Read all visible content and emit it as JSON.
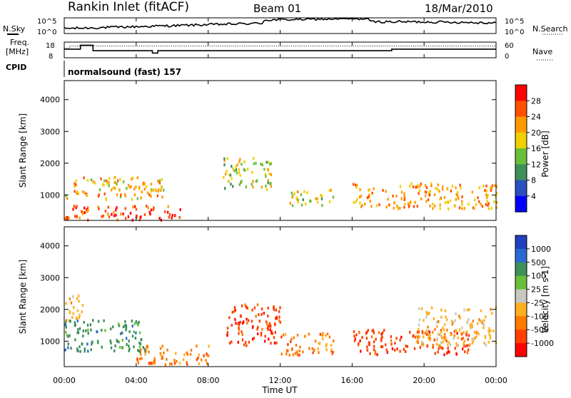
{
  "header": {
    "station": "Rankin Inlet (fitACF)",
    "beam": "Beam 01",
    "date": "18/Mar/2010"
  },
  "top_panels": {
    "nsky_label": "N.Sky",
    "nsky_ticks": [
      "10^5",
      "10^0"
    ],
    "nsearch_label": "N.Search",
    "nsearch_ticks": [
      "10^5",
      "10^0"
    ],
    "freq_label": "Freq.",
    "freq_unit": "[MHz]",
    "freq_ticks": [
      "18",
      "8"
    ],
    "nave_label": "Nave",
    "nave_ticks": [
      "60",
      "0"
    ],
    "cpid_label": "CPID",
    "cpid_value": "normalsound (fast) 157"
  },
  "axes": {
    "xlabel": "Time UT",
    "x_ticks": [
      "00:00",
      "04:00",
      "08:00",
      "12:00",
      "16:00",
      "20:00",
      "00:00"
    ],
    "ylabel": "Slant Range [km]",
    "y_ticks": [
      "1000",
      "2000",
      "3000",
      "4000"
    ]
  },
  "power_colorbar": {
    "label": "Power [dB]",
    "ticks": [
      "4",
      "8",
      "12",
      "16",
      "20",
      "24",
      "28"
    ],
    "colors": [
      "#0000ff",
      "#2a4fc0",
      "#3e8f5a",
      "#6abf3a",
      "#f0d000",
      "#ff9a00",
      "#ff5000",
      "#ff0000"
    ]
  },
  "velocity_colorbar": {
    "label": "Velocity [m s-1]",
    "ticks": [
      "1000",
      "500",
      "100",
      "25",
      "-25",
      "-100",
      "-500",
      "-1000"
    ],
    "colors": [
      "#2040c0",
      "#2a6ad0",
      "#3e8f5a",
      "#6abf3a",
      "#c8c8c0",
      "#ffb020",
      "#ff7a00",
      "#ff4000",
      "#ff0000"
    ]
  },
  "chart_data": [
    {
      "type": "heatmap",
      "title": "Power",
      "xlabel": "Time UT",
      "ylabel": "Slant Range [km]",
      "xlim": [
        "00:00",
        "24:00"
      ],
      "ylim": [
        200,
        4600
      ],
      "colorbar_range": [
        0,
        32
      ],
      "regions": [
        {
          "t_start": 0.0,
          "t_end": 6.5,
          "r_low": 250,
          "r_high": 700,
          "power_db": 26
        },
        {
          "t_start": 0.0,
          "t_end": 5.5,
          "r_low": 900,
          "r_high": 1600,
          "power_db": 18
        },
        {
          "t_start": 8.8,
          "t_end": 11.5,
          "r_low": 1200,
          "r_high": 2200,
          "power_db": 14
        },
        {
          "t_start": 12.5,
          "t_end": 15.0,
          "r_low": 700,
          "r_high": 1200,
          "power_db": 14
        },
        {
          "t_start": 16.0,
          "t_end": 24.0,
          "r_low": 600,
          "r_high": 1400,
          "power_db": 20
        }
      ]
    },
    {
      "type": "heatmap",
      "title": "Velocity",
      "xlabel": "Time UT",
      "ylabel": "Slant Range [km]",
      "xlim": [
        "00:00",
        "24:00"
      ],
      "ylim": [
        200,
        4600
      ],
      "colorbar_range": [
        -1000,
        1000
      ],
      "regions": [
        {
          "t_start": 0.0,
          "t_end": 4.5,
          "r_low": 700,
          "r_high": 1700,
          "velocity": 150
        },
        {
          "t_start": 0.0,
          "t_end": 1.0,
          "r_low": 1700,
          "r_high": 2500,
          "velocity": 0
        },
        {
          "t_start": 4.0,
          "t_end": 8.0,
          "r_low": 300,
          "r_high": 900,
          "velocity": -150
        },
        {
          "t_start": 9.0,
          "t_end": 12.0,
          "r_low": 900,
          "r_high": 2200,
          "velocity": -300
        },
        {
          "t_start": 12.0,
          "t_end": 15.0,
          "r_low": 600,
          "r_high": 1300,
          "velocity": -200
        },
        {
          "t_start": 16.0,
          "t_end": 22.5,
          "r_low": 600,
          "r_high": 1400,
          "velocity": -500
        },
        {
          "t_start": 19.5,
          "t_end": 24.0,
          "r_low": 900,
          "r_high": 2100,
          "velocity": 0
        }
      ]
    }
  ]
}
